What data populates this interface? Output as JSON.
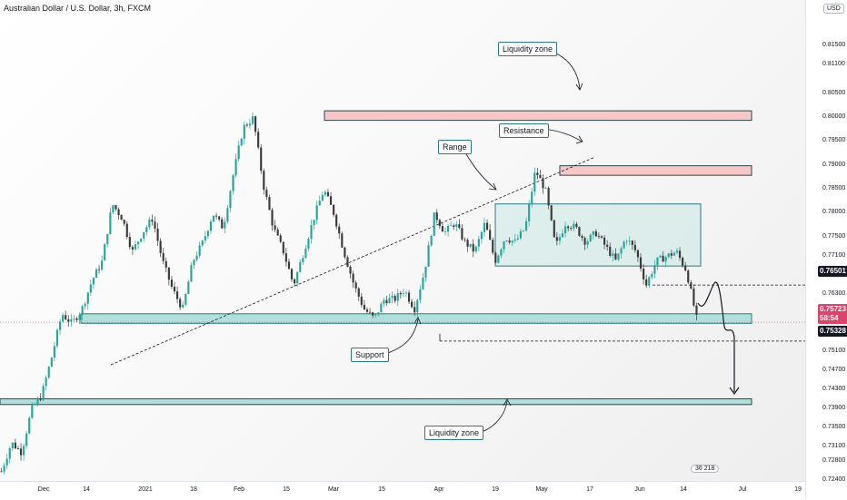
{
  "header": {
    "title": "Australian Dollar / U.S. Dollar, 3h, FXCM",
    "currency": "USD"
  },
  "colors": {
    "candle_up": "#26a69a",
    "candle_down": "#3a3a3a",
    "zone_fill": "#b2dfdb",
    "zone_border": "#2a7a82",
    "liquidity_top_fill": "#f8c6c6",
    "current_price": "#d9466b",
    "level_tag": "#131722"
  },
  "annotations": {
    "liquidity_top": "Liquidity zone",
    "resistance": "Resistance",
    "range": "Range",
    "support": "Support",
    "liquidity_bottom": "Liquidity zone"
  },
  "price_tags": {
    "level_upper": "0.76501",
    "current": "0.75723",
    "countdown": "58:54",
    "level_lower": "0.75328"
  },
  "indicator_badge": "36 218",
  "chart_data": {
    "type": "candlestick",
    "title": "Australian Dollar / U.S. Dollar, 3h, FXCM",
    "y_ticks": [
      "0.81500",
      "0.81100",
      "0.80500",
      "0.80000",
      "0.79500",
      "0.79000",
      "0.78500",
      "0.78000",
      "0.77500",
      "0.77100",
      "0.76700",
      "0.76300",
      "0.75900",
      "0.75100",
      "0.74700",
      "0.74300",
      "0.73900",
      "0.73500",
      "0.73100",
      "0.72800",
      "0.72400"
    ],
    "x_ticks": [
      "Dec",
      "14",
      "2021",
      "18",
      "Feb",
      "15",
      "Mar",
      "15",
      "Apr",
      "19",
      "May",
      "17",
      "Jun",
      "14",
      "Jul",
      "19"
    ],
    "ylim": [
      0.724,
      0.819
    ],
    "series_path": [
      [
        0.726,
        0.732,
        0.73,
        0.739,
        0.742,
        0.75,
        0.759,
        0.757,
        0.76,
        0.766,
        0.77,
        0.782,
        0.779,
        0.772,
        0.776,
        0.779,
        0.77,
        0.764,
        0.76,
        0.77,
        0.774,
        0.78,
        0.777,
        0.788,
        0.798,
        0.8,
        0.786,
        0.777,
        0.772,
        0.765,
        0.772,
        0.779,
        0.785,
        0.78,
        0.772,
        0.765,
        0.76,
        0.758,
        0.762,
        0.762,
        0.764,
        0.76,
        0.768,
        0.78,
        0.776,
        0.778,
        0.774,
        0.772,
        0.778,
        0.77,
        0.775,
        0.774,
        0.777,
        0.789,
        0.785,
        0.773,
        0.778,
        0.777,
        0.774,
        0.776,
        0.773,
        0.77,
        0.775,
        0.772,
        0.765,
        0.77,
        0.771,
        0.772,
        0.768,
        0.758
      ]
    ],
    "levels": {
      "liquidity_zone_top": [
        0.7995,
        0.8015
      ],
      "resistance_zone": [
        0.788,
        0.79
      ],
      "range_box": [
        0.769,
        0.782
      ],
      "support_zone": [
        0.757,
        0.759
      ],
      "liquidity_zone_bottom": [
        0.74,
        0.7412
      ],
      "dashed_level_upper": 0.76501,
      "dashed_level_lower": 0.75328,
      "current_price": 0.75723
    },
    "grid": false
  }
}
